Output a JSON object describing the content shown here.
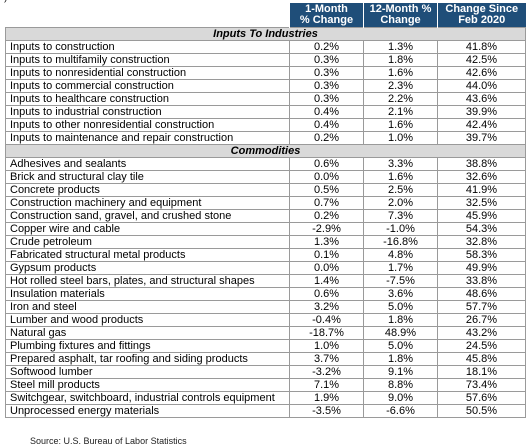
{
  "top_text": ")",
  "headers": [
    "1-Month\n% Change",
    "12-Month %\nChange",
    "Change Since\nFeb 2020"
  ],
  "sections": [
    {
      "title": "Inputs To Industries",
      "rows": [
        {
          "label": "Inputs to construction",
          "m1": "0.2%",
          "m12": "1.3%",
          "since": "41.8%"
        },
        {
          "label": "Inputs to multifamily construction",
          "m1": "0.3%",
          "m12": "1.8%",
          "since": "42.5%"
        },
        {
          "label": "Inputs to nonresidential construction",
          "m1": "0.3%",
          "m12": "1.6%",
          "since": "42.6%"
        },
        {
          "label": "Inputs to commercial construction",
          "m1": "0.3%",
          "m12": "2.3%",
          "since": "44.0%"
        },
        {
          "label": "Inputs to healthcare construction",
          "m1": "0.3%",
          "m12": "2.2%",
          "since": "43.6%"
        },
        {
          "label": "Inputs to industrial construction",
          "m1": "0.4%",
          "m12": "2.1%",
          "since": "39.9%"
        },
        {
          "label": "Inputs to other nonresidential construction",
          "m1": "0.4%",
          "m12": "1.6%",
          "since": "42.4%"
        },
        {
          "label": "Inputs to maintenance and repair construction",
          "m1": "0.2%",
          "m12": "1.0%",
          "since": "39.7%"
        }
      ]
    },
    {
      "title": "Commodities",
      "rows": [
        {
          "label": "Adhesives and sealants",
          "m1": "0.6%",
          "m12": "3.3%",
          "since": "38.8%"
        },
        {
          "label": "Brick and structural clay tile",
          "m1": "0.0%",
          "m12": "1.6%",
          "since": "32.6%"
        },
        {
          "label": "Concrete products",
          "m1": "0.5%",
          "m12": "2.5%",
          "since": "41.9%"
        },
        {
          "label": "Construction machinery and equipment",
          "m1": "0.7%",
          "m12": "2.0%",
          "since": "32.5%"
        },
        {
          "label": "Construction sand, gravel, and crushed stone",
          "m1": "0.2%",
          "m12": "7.3%",
          "since": "45.9%"
        },
        {
          "label": "Copper wire and cable",
          "m1": "-2.9%",
          "m12": "-1.0%",
          "since": "54.3%"
        },
        {
          "label": "Crude petroleum",
          "m1": "1.3%",
          "m12": "-16.8%",
          "since": "32.8%"
        },
        {
          "label": "Fabricated structural metal products",
          "m1": "0.1%",
          "m12": "4.8%",
          "since": "58.3%"
        },
        {
          "label": "Gypsum products",
          "m1": "0.0%",
          "m12": "1.7%",
          "since": "49.9%"
        },
        {
          "label": "Hot rolled steel bars, plates, and structural shapes",
          "m1": "1.4%",
          "m12": "-7.5%",
          "since": "33.8%"
        },
        {
          "label": "Insulation materials",
          "m1": "0.6%",
          "m12": "3.6%",
          "since": "48.6%"
        },
        {
          "label": "Iron and steel",
          "m1": "3.2%",
          "m12": "5.0%",
          "since": "57.7%"
        },
        {
          "label": "Lumber and wood products",
          "m1": "-0.4%",
          "m12": "1.8%",
          "since": "26.7%"
        },
        {
          "label": "Natural gas",
          "m1": "-18.7%",
          "m12": "48.9%",
          "since": "43.2%"
        },
        {
          "label": "Plumbing fixtures and fittings",
          "m1": "1.0%",
          "m12": "5.0%",
          "since": "24.5%"
        },
        {
          "label": "Prepared asphalt, tar roofing and siding products",
          "m1": "3.7%",
          "m12": "1.8%",
          "since": "45.8%"
        },
        {
          "label": "Softwood lumber",
          "m1": "-3.2%",
          "m12": "9.1%",
          "since": "18.1%"
        },
        {
          "label": "Steel mill products",
          "m1": "7.1%",
          "m12": "8.8%",
          "since": "73.4%"
        },
        {
          "label": "Switchgear, switchboard, industrial controls equipment",
          "m1": "1.9%",
          "m12": "9.0%",
          "since": "57.6%"
        },
        {
          "label": "Unprocessed energy materials",
          "m1": "-3.5%",
          "m12": "-6.6%",
          "since": "50.5%"
        }
      ]
    }
  ],
  "source": "Source: U.S. Bureau of Labor Statistics",
  "colors": {
    "header_bg": "#1f4e79",
    "section_bg": "#d9d9d9",
    "border": "#9a9a9a"
  }
}
